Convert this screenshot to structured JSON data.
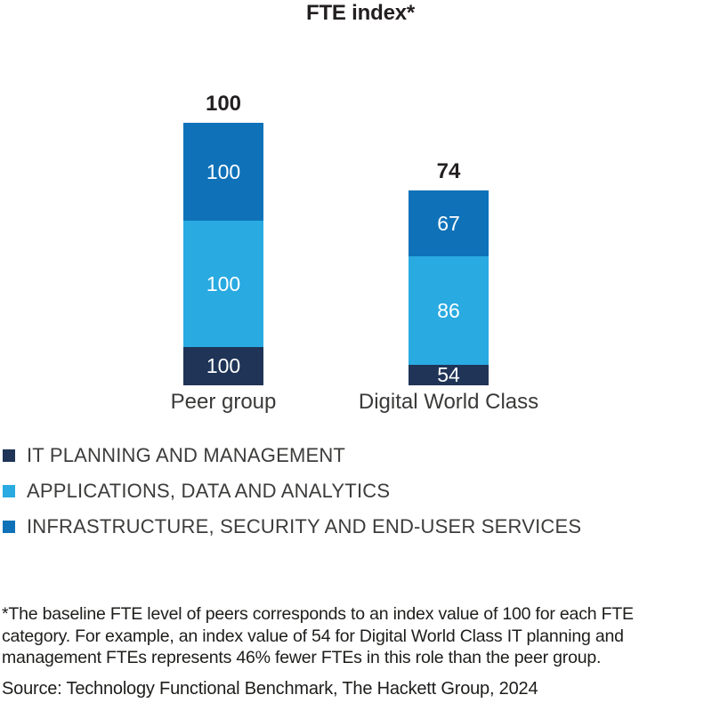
{
  "chart_data": {
    "type": "bar",
    "variant": "stacked",
    "title": "FTE index*",
    "categories": [
      "Peer group",
      "Digital World Class"
    ],
    "series": [
      {
        "name": "IT PLANNING AND MANAGEMENT",
        "color": "#1F3457",
        "values": [
          100,
          54
        ]
      },
      {
        "name": "APPLICATIONS, DATA AND ANALYTICS",
        "color": "#29AAE1",
        "values": [
          100,
          86
        ]
      },
      {
        "name": "INFRASTRUCTURE, SECURITY AND END-USER SERVICES",
        "color": "#0F72B9",
        "values": [
          100,
          67
        ]
      }
    ],
    "totals": [
      100,
      74
    ],
    "value_labels_inside_bars": true,
    "legend_position": "bottom-left",
    "grid": false,
    "axes_hidden": true
  },
  "footnote": {
    "lines": [
      "*The baseline FTE level of peers corresponds to an index value of 100 for each FTE",
      "category. For example, an index value of 54 for Digital World Class IT planning and",
      "management FTEs represents 46% fewer FTEs in this role than the peer group."
    ]
  },
  "source": "Source: Technology Functional Benchmark, The Hackett Group, 2024"
}
